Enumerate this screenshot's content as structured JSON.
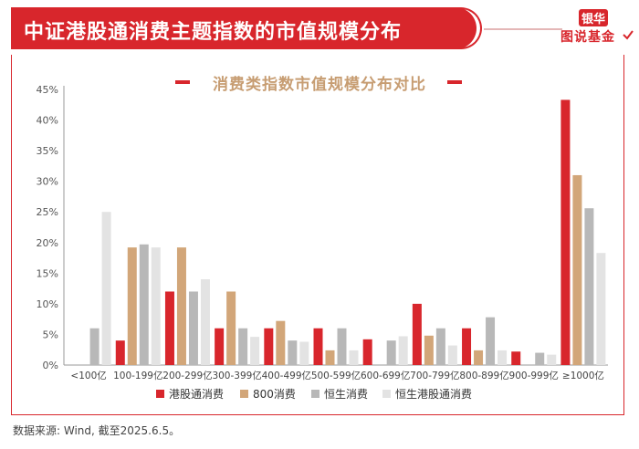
{
  "header": {
    "title": "中证港股通消费主题指数的市值规模分布",
    "logo_top": "银华",
    "logo_bottom": "图说基金"
  },
  "colors": {
    "accent": "#d8262c",
    "subtitle": "#c79d72",
    "series": [
      "#d8262c",
      "#d2a679",
      "#b8b8b8",
      "#e3e3e3"
    ]
  },
  "chart_data": {
    "type": "bar",
    "title": "消费类指数市值规模分布对比",
    "xlabel": "",
    "ylabel": "",
    "ylim": [
      0,
      45
    ],
    "ytick_labels": [
      "0%",
      "5%",
      "10%",
      "15%",
      "20%",
      "25%",
      "30%",
      "35%",
      "40%",
      "45%"
    ],
    "yticks": [
      0,
      5,
      10,
      15,
      20,
      25,
      30,
      35,
      40,
      45
    ],
    "grid": false,
    "legend_position": "bottom",
    "categories": [
      "<100亿",
      "100-199亿",
      "200-299亿",
      "300-399亿",
      "400-499亿",
      "500-599亿",
      "600-699亿",
      "700-799亿",
      "800-899亿",
      "900-999亿",
      "≥1000亿"
    ],
    "series": [
      {
        "name": "港股通消费",
        "values": [
          0,
          4,
          12,
          6,
          6,
          6,
          4.2,
          10,
          6,
          2.2,
          43.3
        ]
      },
      {
        "name": "800消费",
        "values": [
          0,
          19.2,
          19.2,
          12,
          7.2,
          2.4,
          0,
          4.8,
          2.4,
          0,
          31
        ]
      },
      {
        "name": "恒生消费",
        "values": [
          6,
          19.7,
          12,
          6,
          4,
          6,
          4,
          6,
          7.8,
          2,
          25.6
        ]
      },
      {
        "name": "恒生港股通消费",
        "values": [
          25,
          19.2,
          14,
          4.6,
          3.8,
          2.4,
          4.7,
          3.2,
          2.4,
          1.7,
          18.3
        ]
      }
    ]
  },
  "footer": {
    "source": "数据来源: Wind, 截至2025.6.5。"
  }
}
